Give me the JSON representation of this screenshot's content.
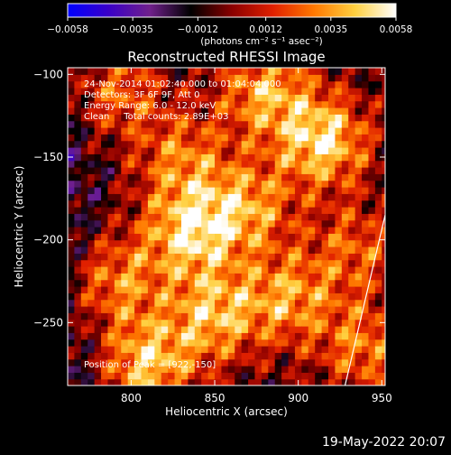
{
  "chart_data": {
    "type": "heatmap",
    "title": "Reconstructed RHESSI Image",
    "xlabel": "Heliocentric X (arcsec)",
    "ylabel": "Heliocentric Y (arcsec)",
    "xlim": [
      762,
      952
    ],
    "ylim": [
      -288,
      -96
    ],
    "x_ticks": [
      800,
      850,
      900,
      950
    ],
    "y_ticks": [
      -100,
      -150,
      -200,
      -250
    ],
    "grid": false,
    "colorbar": {
      "label": "(photons cm⁻² s⁻¹ asec⁻²)",
      "range": [
        -0.0058,
        0.0058
      ],
      "ticks": [
        -0.0058,
        -0.0035,
        -0.0012,
        0.0012,
        0.0035,
        0.0058
      ],
      "tick_labels": [
        "−0.0058",
        "−0.0035",
        "−0.0012",
        "0.0012",
        "0.0035",
        "0.0058"
      ],
      "colors": [
        "#0000ff",
        "#3a00c8",
        "#70208c",
        "#000000",
        "#8a0000",
        "#e02000",
        "#ff7800",
        "#ffd040",
        "#ffffff"
      ]
    },
    "annotations": [
      "24-Nov-2014 01:02:40.000 to 01:04:04.000",
      "Detectors: 3F 6F 9F, Att 0",
      "Energy Range: 6.0 - 12.0 keV",
      "Clean     Total counts: 2.89E+03",
      "Position of Peak = [922,-150]"
    ],
    "peak": [
      922,
      -150
    ],
    "hotspots": [
      {
        "x": 915,
        "y": -140,
        "value": 0.0056
      },
      {
        "x": 835,
        "y": -195,
        "value": 0.0052
      },
      {
        "x": 810,
        "y": -275,
        "value": 0.005
      },
      {
        "x": 850,
        "y": -245,
        "value": 0.0046
      },
      {
        "x": 880,
        "y": -110,
        "value": 0.0044
      },
      {
        "x": 870,
        "y": -180,
        "value": 0.004
      },
      {
        "x": 895,
        "y": -235,
        "value": 0.004
      },
      {
        "x": 790,
        "y": -225,
        "value": 0.0038
      },
      {
        "x": 940,
        "y": -265,
        "value": 0.0036
      },
      {
        "x": 790,
        "y": -110,
        "value": 0.0034
      },
      {
        "x": 830,
        "y": -150,
        "value": 0.0034
      },
      {
        "x": 935,
        "y": -205,
        "value": 0.003
      }
    ],
    "limb_line": [
      [
        928,
        -288
      ],
      [
        952,
        -185
      ]
    ]
  },
  "timestamp": "19-May-2022 20:07"
}
